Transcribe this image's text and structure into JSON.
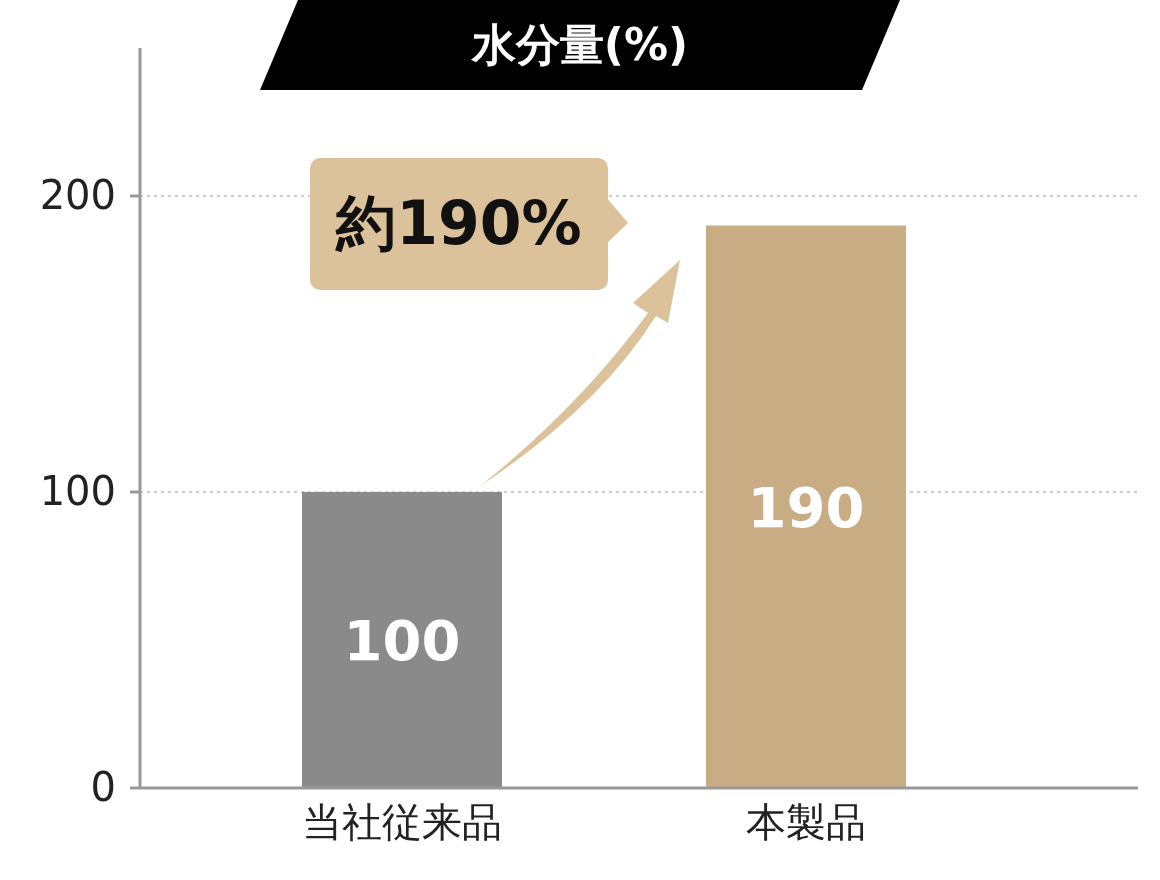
{
  "chart_data": {
    "type": "bar",
    "title": "水分量(%)",
    "categories": [
      "当社従来品",
      "本製品"
    ],
    "values": [
      100,
      190
    ],
    "colors": [
      "#8a8a8a",
      "#c8ad84"
    ],
    "ylim": [
      0,
      250
    ],
    "yticks": [
      0,
      100,
      200
    ],
    "grid": "y",
    "data_labels": true,
    "annotations": [
      "約190%"
    ]
  }
}
